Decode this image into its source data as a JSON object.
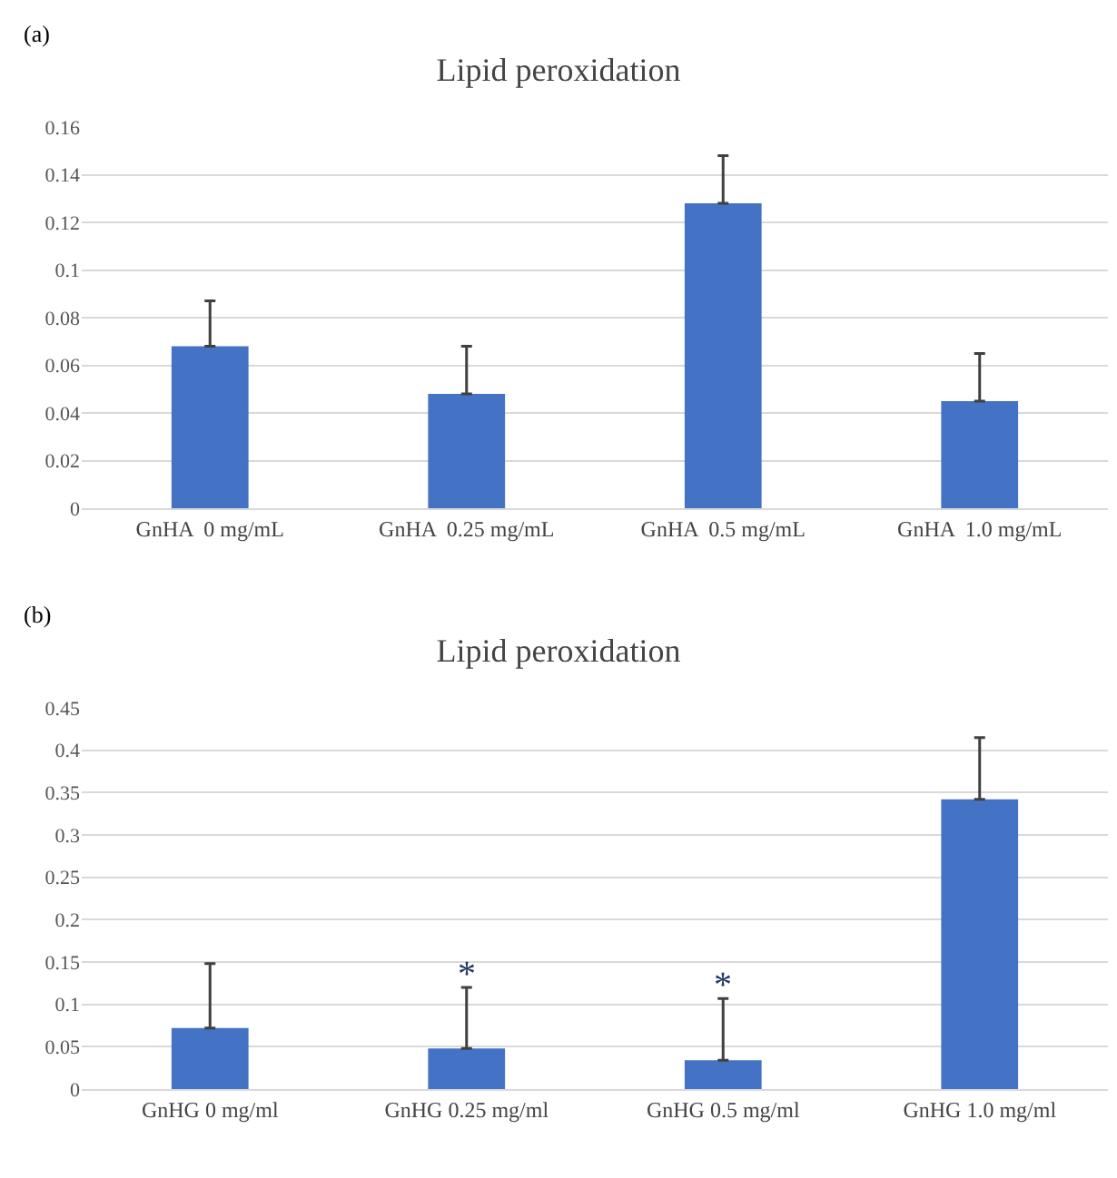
{
  "chart_data": [
    {
      "type": "bar",
      "title": "Lipid peroxidation",
      "annotations": [
        "(a)"
      ],
      "categories": [
        "GnHA  0 mg/mL",
        "GnHA  0.25 mg/mL",
        "GnHA  0.5 mg/mL",
        "GnHA  1.0 mg/mL"
      ],
      "values": [
        0.068,
        0.048,
        0.128,
        0.045
      ],
      "color": "#4472c4",
      "errors": [
        [
          0.068,
          0.087
        ],
        [
          0.048,
          0.068
        ],
        [
          0.128,
          0.148
        ],
        [
          0.045,
          0.065
        ]
      ],
      "ylim": [
        0,
        0.16
      ],
      "yticks": [
        0,
        0.02,
        0.04,
        0.06,
        0.08,
        0.1,
        0.12,
        0.14,
        0.16
      ],
      "grid": "y"
    },
    {
      "type": "bar",
      "title": "Lipid peroxidation",
      "annotations": [
        "(b)",
        {
          "text": "*",
          "x": "GnHG 0.25 mg/ml",
          "y": 0.12
        },
        {
          "text": "*",
          "x": "GnHG 0.5 mg/ml",
          "y": 0.107
        }
      ],
      "categories": [
        "GnHG 0 mg/ml",
        "GnHG 0.25 mg/ml",
        "GnHG 0.5 mg/ml",
        "GnHG 1.0 mg/ml"
      ],
      "values": [
        0.072,
        0.048,
        0.034,
        0.342
      ],
      "color": "#4472c4",
      "errors": [
        [
          0.072,
          0.148
        ],
        [
          0.048,
          0.12
        ],
        [
          0.034,
          0.107
        ],
        [
          0.342,
          0.415
        ]
      ],
      "ylim": [
        0,
        0.45
      ],
      "yticks": [
        0,
        0.05,
        0.1,
        0.15,
        0.2,
        0.25,
        0.3,
        0.35,
        0.4,
        0.45
      ],
      "grid": "y"
    }
  ]
}
